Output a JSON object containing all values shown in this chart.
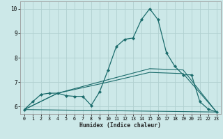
{
  "xlabel": "Humidex (Indice chaleur)",
  "background_color": "#cce8e8",
  "grid_color": "#b0d0d0",
  "line_color": "#1a6b6b",
  "xlim": [
    -0.5,
    23.5
  ],
  "ylim": [
    5.7,
    10.3
  ],
  "xticks": [
    0,
    1,
    2,
    3,
    4,
    5,
    6,
    7,
    8,
    9,
    10,
    11,
    12,
    13,
    14,
    15,
    16,
    17,
    18,
    19,
    20,
    21,
    22,
    23
  ],
  "yticks": [
    6,
    7,
    8,
    9,
    10
  ],
  "main_series": {
    "x": [
      0,
      1,
      2,
      3,
      4,
      5,
      6,
      7,
      8,
      9,
      10,
      11,
      12,
      13,
      14,
      15,
      16,
      17,
      18,
      19,
      20,
      21,
      22,
      23
    ],
    "y": [
      5.88,
      6.2,
      6.5,
      6.55,
      6.55,
      6.45,
      6.42,
      6.42,
      6.05,
      6.6,
      7.48,
      8.45,
      8.75,
      8.8,
      9.55,
      10.0,
      9.55,
      8.2,
      7.65,
      7.3,
      7.3,
      6.2,
      5.9,
      5.78
    ]
  },
  "trend_lines": [
    {
      "x": [
        0,
        23
      ],
      "y": [
        5.88,
        5.78
      ]
    },
    {
      "x": [
        0,
        4,
        10,
        15,
        19,
        23
      ],
      "y": [
        5.88,
        6.55,
        7.1,
        7.55,
        7.5,
        5.78
      ]
    },
    {
      "x": [
        0,
        4,
        10,
        15,
        19,
        23
      ],
      "y": [
        5.88,
        6.55,
        7.0,
        7.4,
        7.35,
        5.78
      ]
    }
  ]
}
